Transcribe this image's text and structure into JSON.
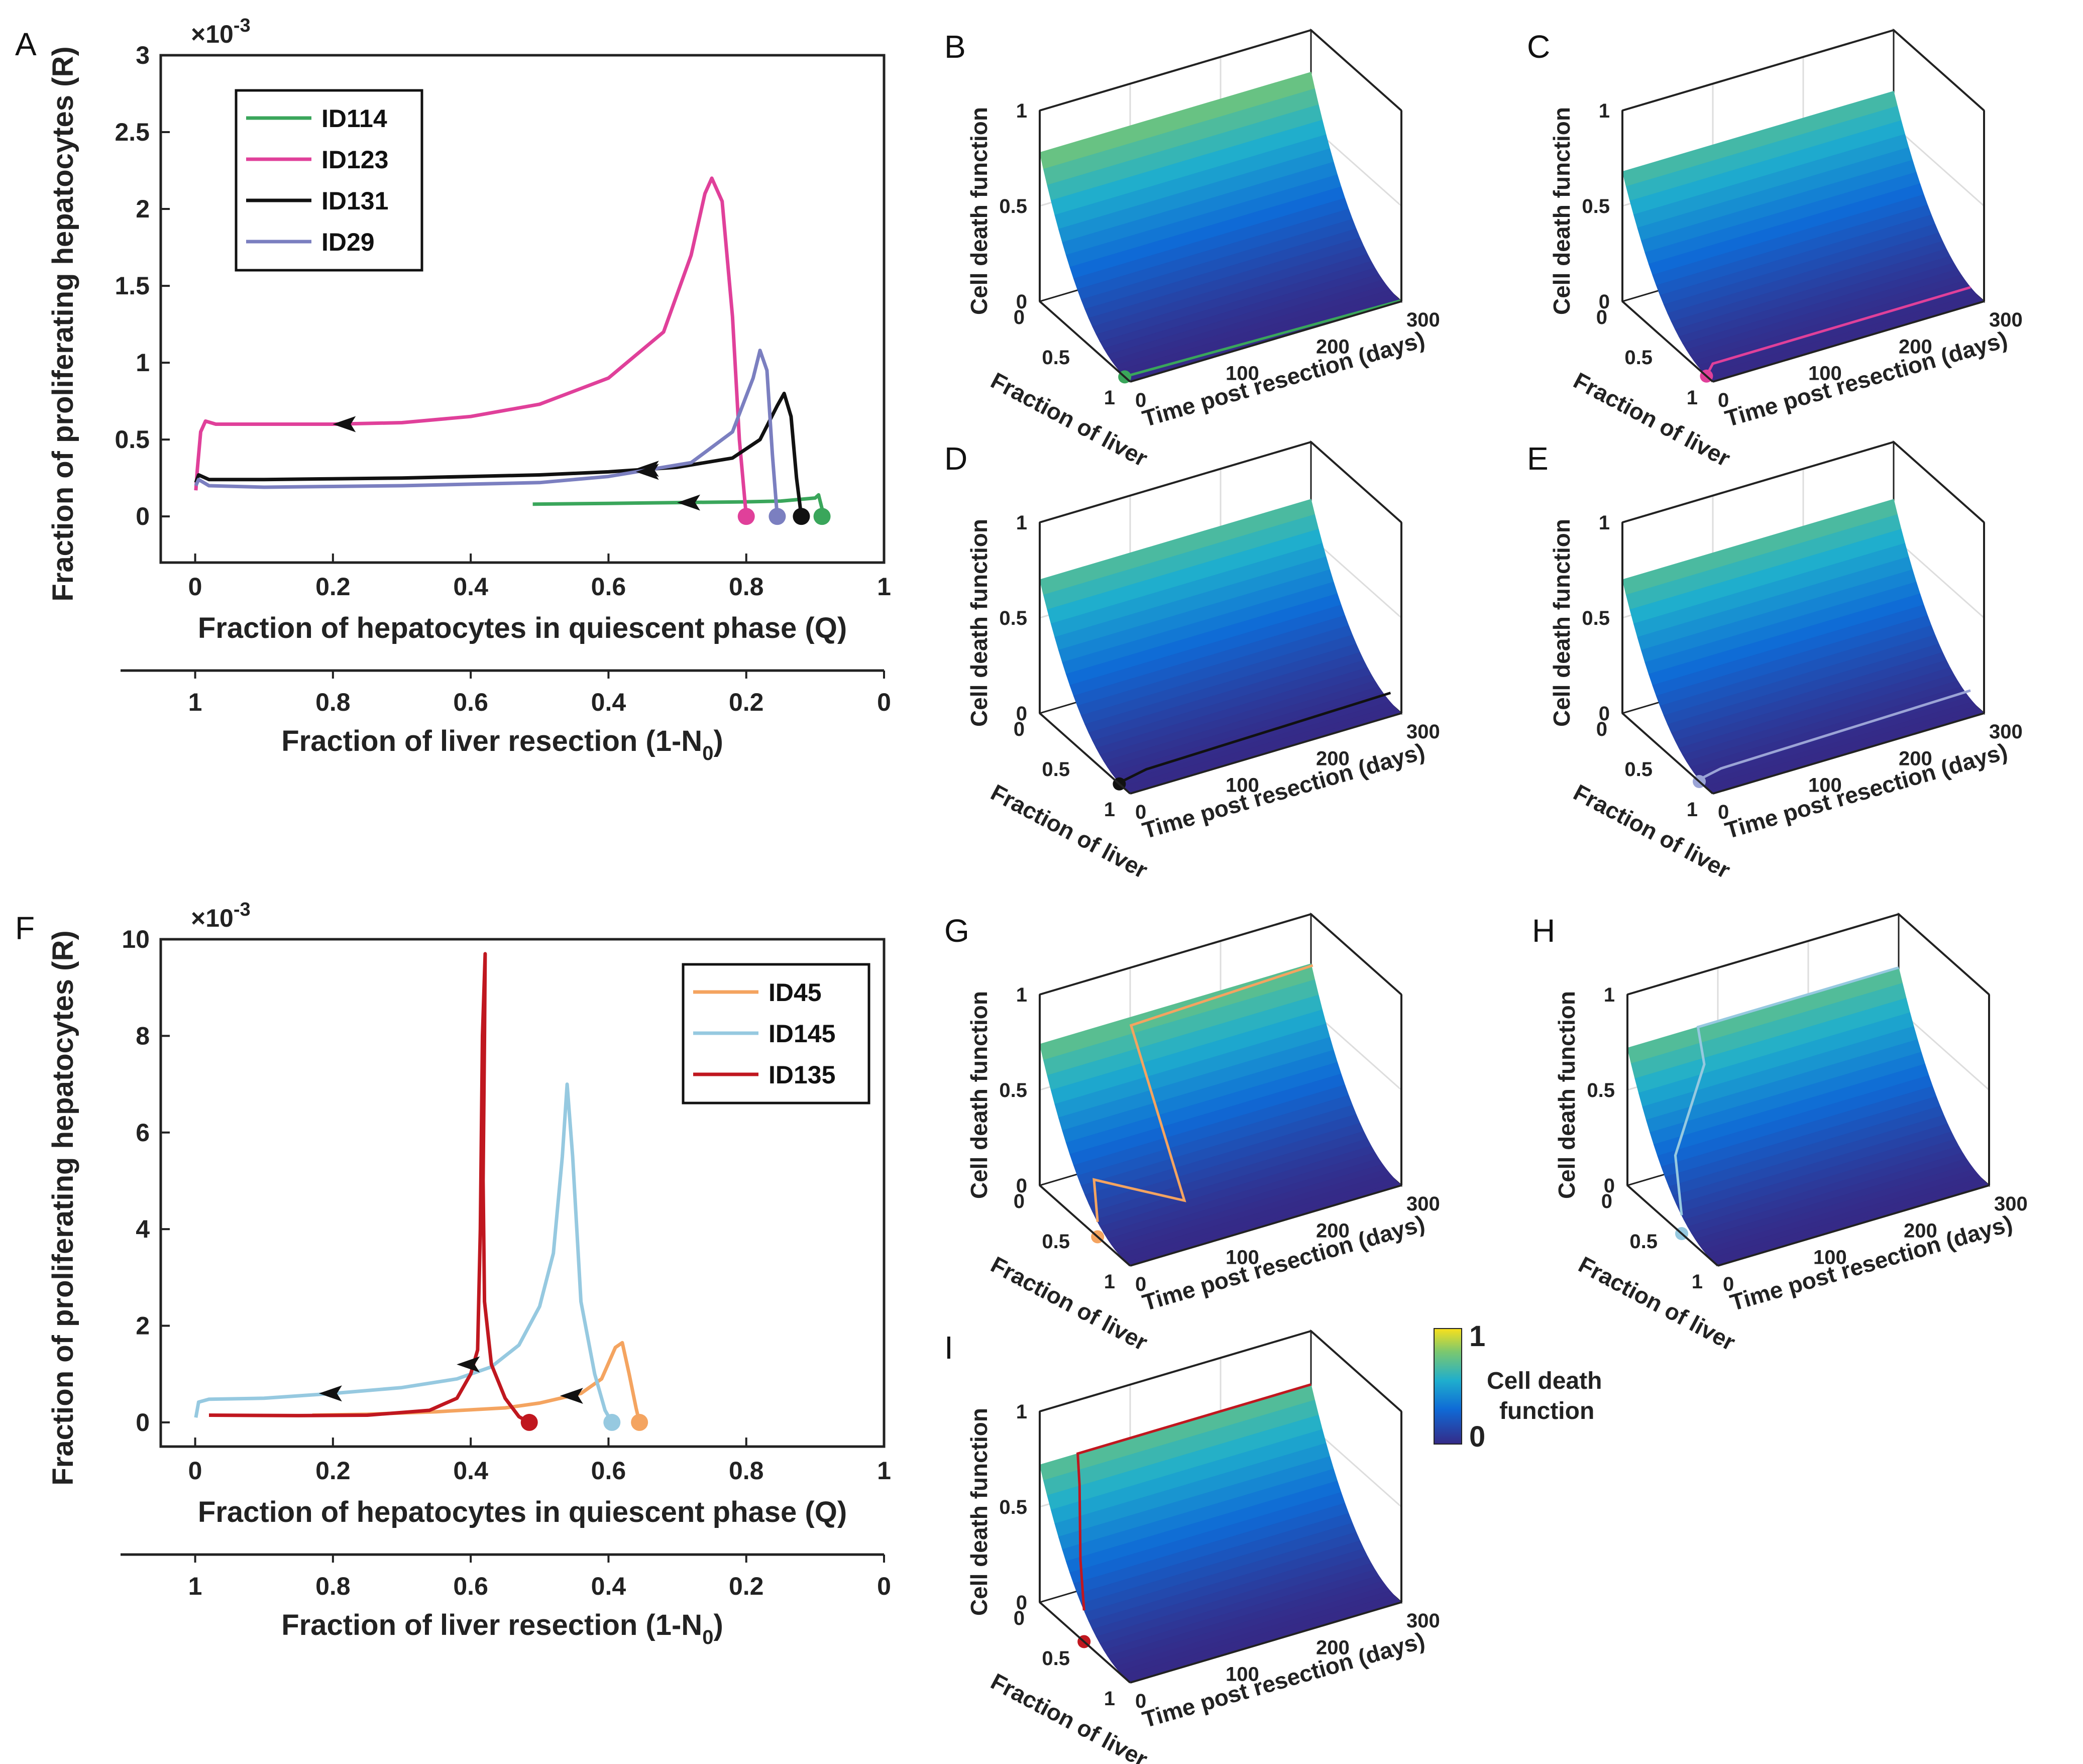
{
  "chart_data": [
    {
      "panel": "A",
      "type": "line",
      "xlabel": "Fraction of hepatocytes in quiescent phase (Q)",
      "x2label": "Fraction of liver resection (1-N",
      "x2label_sub": "0",
      "x2label_close": ")",
      "ylabel": "Fraction of proliferating hepatocytes (R)",
      "exponent": "×10",
      "exponent_power": "-3",
      "xlim": [
        -0.05,
        1
      ],
      "ylim": [
        -0.3,
        3
      ],
      "xticks": [
        "0",
        "0.2",
        "0.4",
        "0.6",
        "0.8",
        "1"
      ],
      "x2ticks": [
        "1",
        "0.8",
        "0.6",
        "0.4",
        "0.2",
        "0"
      ],
      "yticks": [
        "0",
        "0.5",
        "1",
        "1.5",
        "2",
        "2.5",
        "3"
      ],
      "legend": [
        "ID114",
        "ID123",
        "ID131",
        "ID29"
      ],
      "series": [
        {
          "name": "ID114",
          "color": "#3aa65b",
          "points": [
            [
              0.91,
              0
            ],
            [
              0.91,
              0.05
            ],
            [
              0.905,
              0.14
            ],
            [
              0.9,
              0.12
            ],
            [
              0.85,
              0.1
            ],
            [
              0.8,
              0.095
            ],
            [
              0.7,
              0.09
            ],
            [
              0.6,
              0.085
            ],
            [
              0.49,
              0.08
            ]
          ],
          "arrow": [
            0.72,
            0.09
          ]
        },
        {
          "name": "ID123",
          "color": "#e0409a",
          "points": [
            [
              0.8,
              0
            ],
            [
              0.79,
              0.5
            ],
            [
              0.78,
              1.3
            ],
            [
              0.765,
              2.05
            ],
            [
              0.75,
              2.2
            ],
            [
              0.74,
              2.1
            ],
            [
              0.72,
              1.7
            ],
            [
              0.68,
              1.2
            ],
            [
              0.6,
              0.9
            ],
            [
              0.5,
              0.73
            ],
            [
              0.4,
              0.65
            ],
            [
              0.3,
              0.61
            ],
            [
              0.2,
              0.6
            ],
            [
              0.1,
              0.6
            ],
            [
              0.03,
              0.6
            ],
            [
              0.015,
              0.62
            ],
            [
              0.008,
              0.55
            ],
            [
              0.003,
              0.3
            ],
            [
              0.001,
              0.17
            ]
          ],
          "arrow": [
            0.22,
            0.6
          ]
        },
        {
          "name": "ID131",
          "color": "#111111",
          "points": [
            [
              0.88,
              0
            ],
            [
              0.873,
              0.25
            ],
            [
              0.865,
              0.65
            ],
            [
              0.855,
              0.8
            ],
            [
              0.845,
              0.72
            ],
            [
              0.82,
              0.5
            ],
            [
              0.78,
              0.38
            ],
            [
              0.7,
              0.32
            ],
            [
              0.6,
              0.29
            ],
            [
              0.5,
              0.27
            ],
            [
              0.4,
              0.26
            ],
            [
              0.3,
              0.25
            ],
            [
              0.2,
              0.245
            ],
            [
              0.1,
              0.24
            ],
            [
              0.02,
              0.24
            ],
            [
              0.005,
              0.27
            ],
            [
              0.001,
              0.22
            ]
          ],
          "arrow": [
            0.66,
            0.31
          ]
        },
        {
          "name": "ID29",
          "color": "#7b7fc0",
          "points": [
            [
              0.845,
              0
            ],
            [
              0.838,
              0.4
            ],
            [
              0.83,
              0.95
            ],
            [
              0.82,
              1.08
            ],
            [
              0.81,
              0.9
            ],
            [
              0.78,
              0.55
            ],
            [
              0.72,
              0.35
            ],
            [
              0.6,
              0.26
            ],
            [
              0.5,
              0.22
            ],
            [
              0.4,
              0.21
            ],
            [
              0.3,
              0.2
            ],
            [
              0.2,
              0.195
            ],
            [
              0.1,
              0.19
            ],
            [
              0.02,
              0.2
            ],
            [
              0.005,
              0.24
            ],
            [
              0.001,
              0.2
            ]
          ],
          "arrow": [
            0.66,
            0.29
          ]
        }
      ],
      "markers": [
        {
          "x": 0.8,
          "y": 0,
          "color": "#e0409a"
        },
        {
          "x": 0.845,
          "y": 0,
          "color": "#7b7fc0"
        },
        {
          "x": 0.88,
          "y": 0,
          "color": "#111111"
        },
        {
          "x": 0.91,
          "y": 0,
          "color": "#3aa65b"
        }
      ]
    },
    {
      "panel": "F",
      "type": "line",
      "xlabel": "Fraction of hepatocytes in quiescent phase (Q)",
      "x2label": "Fraction of liver resection (1-N",
      "x2label_sub": "0",
      "x2label_close": ")",
      "ylabel": "Fraction of proliferating hepatocytes (R)",
      "exponent": "×10",
      "exponent_power": "-3",
      "xlim": [
        -0.05,
        1
      ],
      "ylim": [
        -0.5,
        10
      ],
      "xticks": [
        "0",
        "0.2",
        "0.4",
        "0.6",
        "0.8",
        "1"
      ],
      "x2ticks": [
        "1",
        "0.8",
        "0.6",
        "0.4",
        "0.2",
        "0"
      ],
      "yticks": [
        "0",
        "2",
        "4",
        "6",
        "8",
        "10"
      ],
      "legend": [
        "ID45",
        "ID145",
        "ID135"
      ],
      "series": [
        {
          "name": "ID45",
          "color": "#f4a460",
          "points": [
            [
              0.645,
              0
            ],
            [
              0.64,
              0.3
            ],
            [
              0.63,
              1.0
            ],
            [
              0.62,
              1.65
            ],
            [
              0.61,
              1.55
            ],
            [
              0.59,
              0.9
            ],
            [
              0.56,
              0.6
            ],
            [
              0.5,
              0.4
            ],
            [
              0.45,
              0.3
            ],
            [
              0.35,
              0.22
            ],
            [
              0.25,
              0.17
            ],
            [
              0.17,
              0.15
            ]
          ],
          "arrow": [
            0.55,
            0.55
          ]
        },
        {
          "name": "ID145",
          "color": "#96c9e0",
          "points": [
            [
              0.605,
              0
            ],
            [
              0.595,
              0.25
            ],
            [
              0.58,
              1.0
            ],
            [
              0.56,
              2.5
            ],
            [
              0.548,
              5.5
            ],
            [
              0.54,
              7.0
            ],
            [
              0.533,
              5.5
            ],
            [
              0.52,
              3.5
            ],
            [
              0.5,
              2.4
            ],
            [
              0.47,
              1.6
            ],
            [
              0.43,
              1.15
            ],
            [
              0.38,
              0.9
            ],
            [
              0.3,
              0.72
            ],
            [
              0.2,
              0.6
            ],
            [
              0.1,
              0.5
            ],
            [
              0.02,
              0.48
            ],
            [
              0.005,
              0.42
            ],
            [
              0.001,
              0.1
            ]
          ],
          "arrow": [
            0.2,
            0.6
          ]
        },
        {
          "name": "ID135",
          "color": "#c0171f",
          "points": [
            [
              0.485,
              0
            ],
            [
              0.47,
              0.12
            ],
            [
              0.45,
              0.5
            ],
            [
              0.43,
              1.2
            ],
            [
              0.42,
              2.5
            ],
            [
              0.418,
              5
            ],
            [
              0.42,
              8
            ],
            [
              0.421,
              9.7
            ],
            [
              0.417,
              8
            ],
            [
              0.414,
              4
            ],
            [
              0.41,
              1.5
            ],
            [
              0.4,
              1.0
            ],
            [
              0.38,
              0.5
            ],
            [
              0.34,
              0.25
            ],
            [
              0.25,
              0.15
            ],
            [
              0.15,
              0.14
            ],
            [
              0.02,
              0.15
            ]
          ],
          "arrow": [
            0.4,
            1.2
          ]
        }
      ],
      "markers": [
        {
          "x": 0.485,
          "y": 0,
          "color": "#c0171f"
        },
        {
          "x": 0.605,
          "y": 0,
          "color": "#96c9e0"
        },
        {
          "x": 0.645,
          "y": 0,
          "color": "#f4a460"
        }
      ]
    },
    {
      "type": "surface",
      "zlabel": "Cell death function",
      "xlabel": "Fraction of liver",
      "ylabel": "Time post resection (days)",
      "zticks": [
        "0",
        "0.5",
        "1"
      ],
      "xticks": [
        "0",
        "0.5",
        "1"
      ],
      "yticks": [
        "0",
        "100",
        "200",
        "300"
      ],
      "panels": [
        {
          "panel": "B",
          "color": "#3aa65b",
          "start_frac": 0.94,
          "steps": [
            [
              0.99,
              0,
              0
            ],
            [
              0.99,
              1,
              0
            ]
          ],
          "z_top": 0.78
        },
        {
          "panel": "C",
          "color": "#e0409a",
          "start_frac": 0.93,
          "steps": [
            [
              0.95,
              0,
              0
            ],
            [
              0.85,
              0.05,
              0
            ],
            [
              0.85,
              0.12,
              0
            ],
            [
              0.85,
              1,
              0
            ]
          ],
          "z_top": 0.68
        },
        {
          "panel": "D",
          "color": "#111111",
          "start_frac": 0.88,
          "steps": [
            [
              0.88,
              0,
              0
            ],
            [
              0.88,
              0.1,
              0.05
            ],
            [
              0.88,
              1,
              0.08
            ]
          ],
          "z_top": 0.7
        },
        {
          "panel": "E",
          "color": "#9ba4d6",
          "start_frac": 0.85,
          "steps": [
            [
              0.85,
              0,
              0
            ],
            [
              0.85,
              0.08,
              0.05
            ],
            [
              0.85,
              1,
              0.08
            ]
          ],
          "z_top": 0.7
        },
        {
          "panel": "G",
          "color": "#f4a460",
          "start_frac": 0.64,
          "steps": [
            [
              0.64,
              0,
              0
            ],
            [
              0.45,
              0.05,
              0.05
            ],
            [
              0.5,
              0.12,
              0.1
            ],
            [
              0.7,
              0.3,
              0.12
            ],
            [
              0.02,
              0.33,
              0.75
            ],
            [
              0.02,
              1,
              1.0
            ]
          ],
          "z_top": 0.74
        },
        {
          "panel": "H",
          "color": "#96c9e0",
          "start_frac": 0.6,
          "steps": [
            [
              0.6,
              0,
              0
            ],
            [
              0.35,
              0.06,
              0.05
            ],
            [
              0.1,
              0.25,
              0.7
            ],
            [
              0.0,
              0.26,
              1.0
            ],
            [
              0.0,
              1,
              1.0
            ]
          ],
          "z_top": 0.72
        },
        {
          "panel": "I",
          "color": "#c0171f",
          "start_frac": 0.49,
          "steps": [
            [
              0.49,
              0,
              0
            ],
            [
              0.3,
              0.05,
              0.15
            ],
            [
              0.08,
              0.12,
              0.78
            ],
            [
              0.0,
              0.14,
              1.0
            ],
            [
              0.0,
              1,
              1.0
            ]
          ],
          "z_top": 0.72
        }
      ]
    }
  ],
  "colorbar": {
    "title_line1": "Cell death",
    "title_line2": "function",
    "max": "1",
    "min": "0"
  },
  "colors": {
    "surface_low": "#3b1f8a",
    "surface_mid": "#1fa3c8",
    "surface_high": "#f3d91e"
  }
}
